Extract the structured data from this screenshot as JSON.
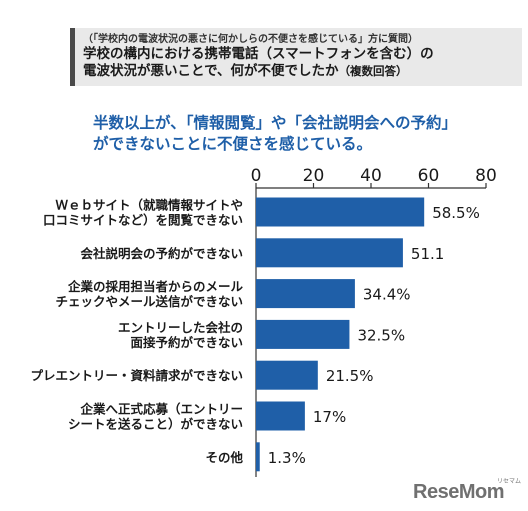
{
  "header": {
    "note": "（「学校内の電波状況の悪さに何かしらの不便さを感じている」方に質問）",
    "title_line1": "学校の構内における携帯電話（スマートフォンを含む）の",
    "title_line2": "電波状況が悪いことで、何が不便でしたか",
    "title_suffix": "（複数回答）"
  },
  "headline": {
    "line1": "半数以上が、「情報閲覧」や「会社説明会への予約」",
    "line2": "ができないことに不便さを感じている。"
  },
  "chart_data": {
    "type": "bar",
    "orientation": "horizontal",
    "categories": [
      [
        "Ｗｅｂサイト（就職情報サイトや",
        "口コミサイトなど）を閲覧できない"
      ],
      [
        "会社説明会の予約ができない"
      ],
      [
        "企業の採用担当者からのメール",
        "チェックやメール送信ができない"
      ],
      [
        "エントリーした会社の",
        "面接予約ができない"
      ],
      [
        "プレエントリー・資料請求ができない"
      ],
      [
        "企業へ正式応募（エントリー",
        "シートを送ること）ができない"
      ],
      [
        "その他"
      ]
    ],
    "values": [
      58.5,
      51.1,
      34.4,
      32.5,
      21.5,
      17,
      1.3
    ],
    "value_labels": [
      "58.5%",
      "51.1",
      "34.4%",
      "32.5%",
      "21.5%",
      "17%",
      "1.3%"
    ],
    "xlim": [
      0,
      80
    ],
    "xticks": [
      "0",
      "20",
      "40",
      "60",
      "80"
    ],
    "bar_color": "#1f5fa8",
    "grid": false
  },
  "logo": {
    "text": "ReseMom",
    "small": "リセマム"
  }
}
